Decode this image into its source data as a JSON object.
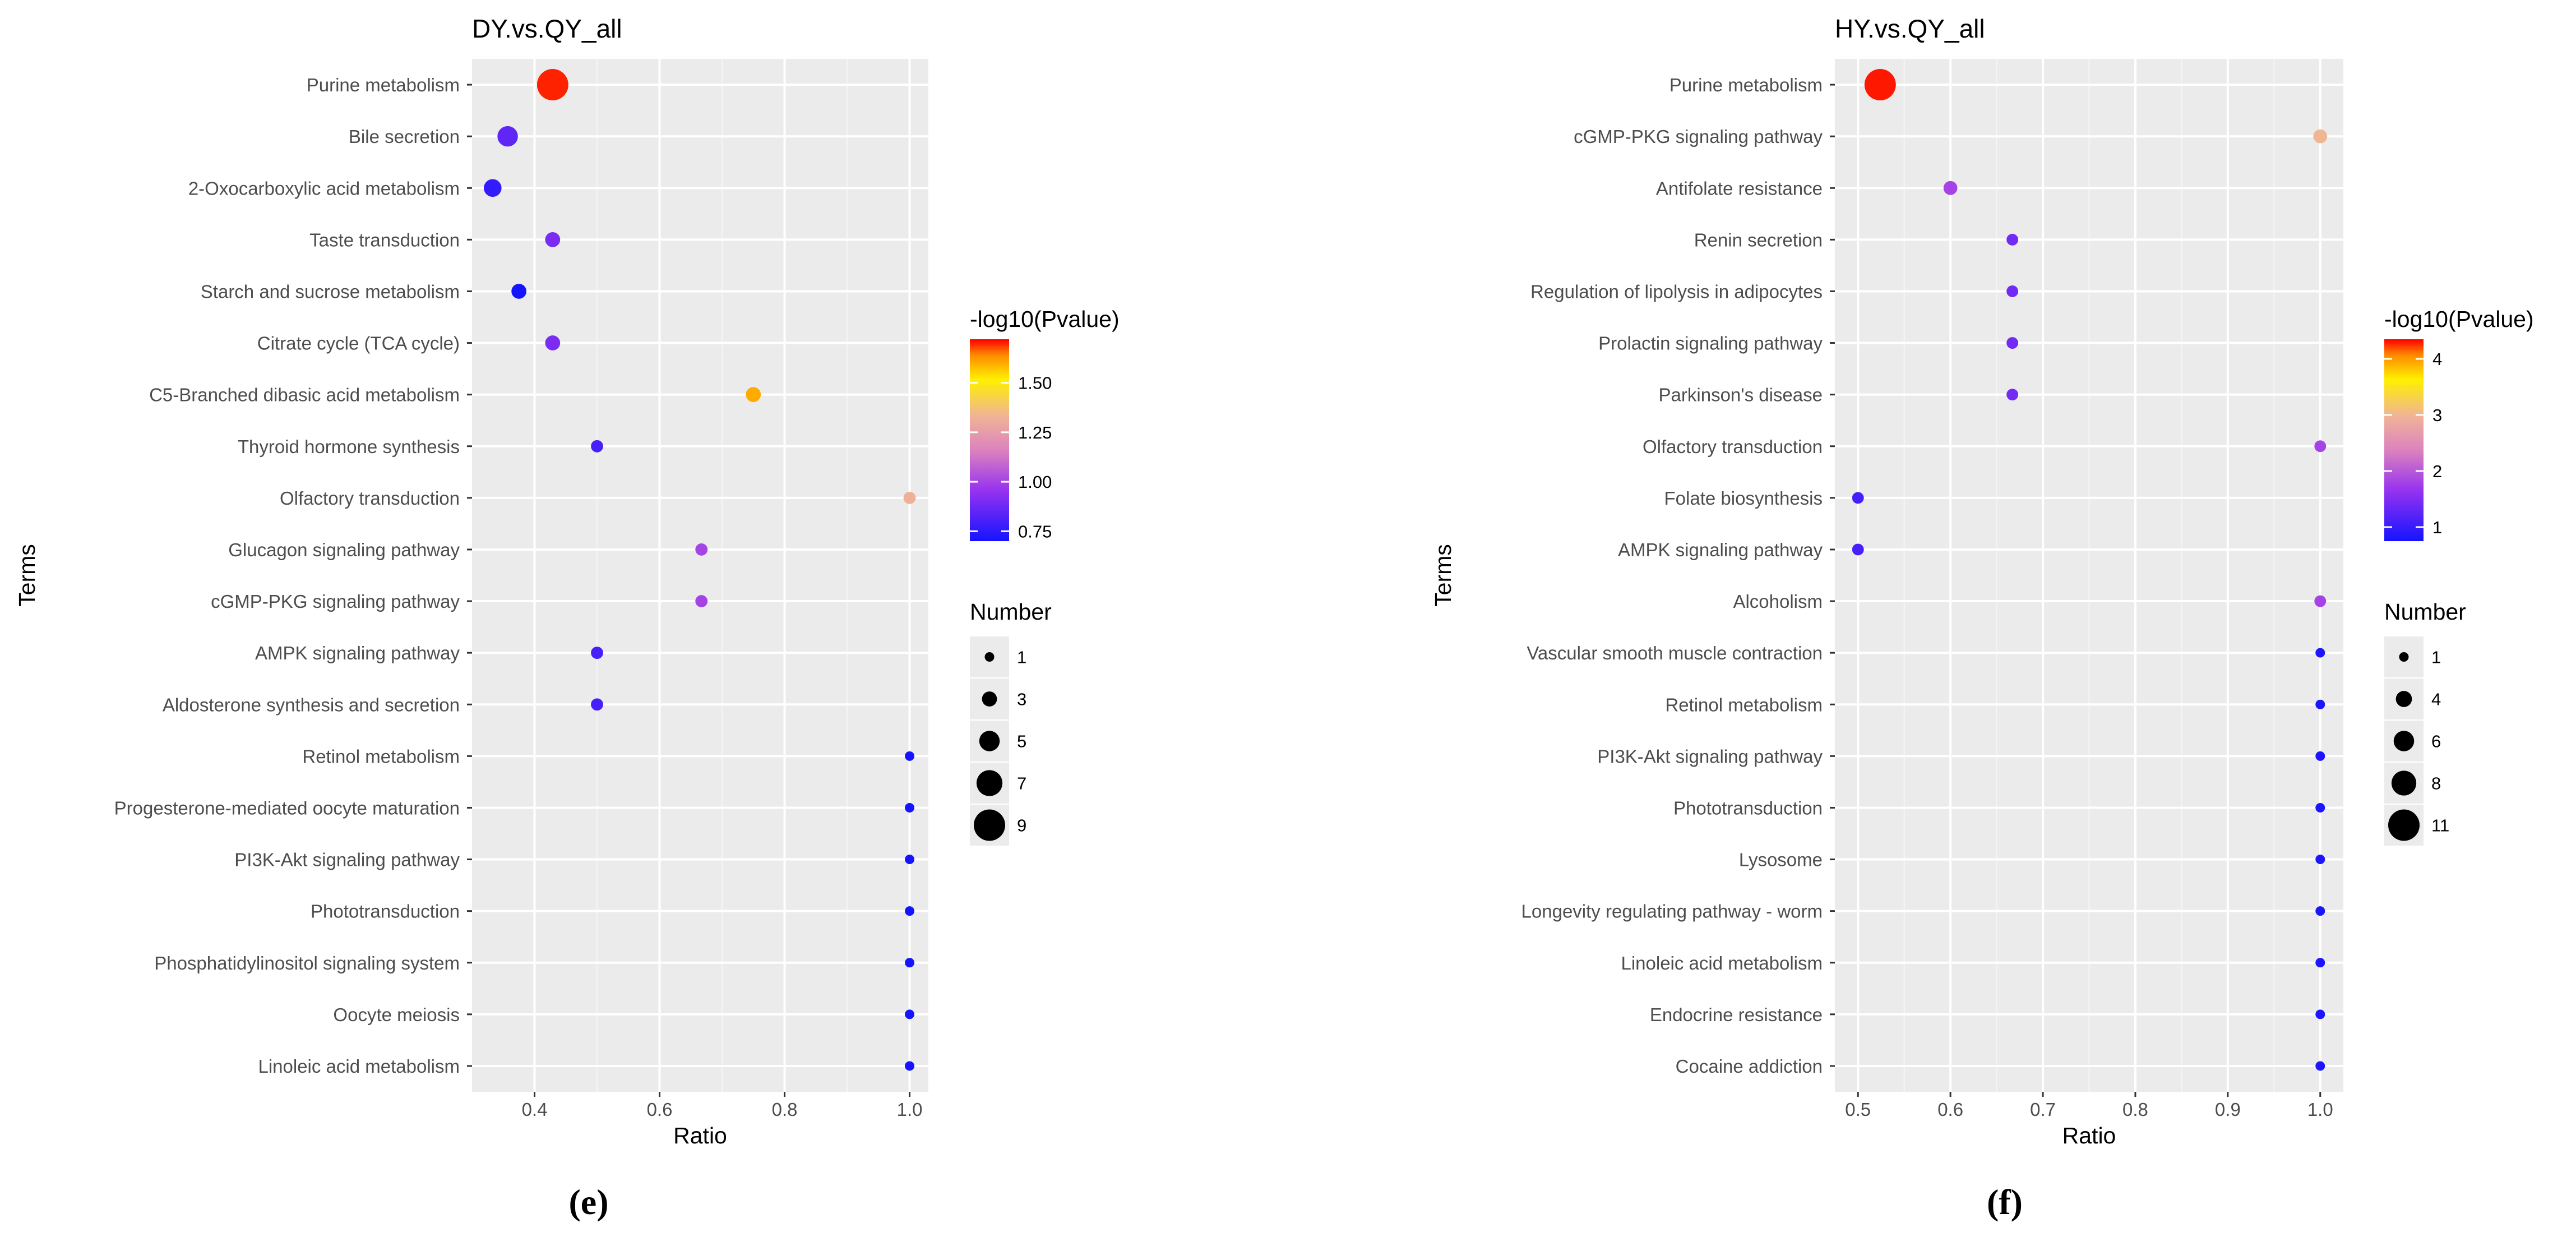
{
  "chart_data": [
    {
      "type": "scatter",
      "subtype": "bubble",
      "title": "DY.vs.QY_all",
      "xlabel": "Ratio",
      "ylabel": "Terms",
      "xlim": [
        0.3,
        1.03
      ],
      "xticks": [
        "0.4",
        "0.6",
        "0.8",
        "1.0"
      ],
      "grid": true,
      "caption": "(e)",
      "terms": [
        "Purine metabolism",
        "Bile secretion",
        "2-Oxocarboxylic acid metabolism",
        "Taste transduction",
        "Starch and sucrose metabolism",
        "Citrate cycle (TCA cycle)",
        "C5-Branched dibasic acid metabolism",
        "Thyroid hormone synthesis",
        "Olfactory transduction",
        "Glucagon signaling pathway",
        "cGMP-PKG signaling pathway",
        "AMPK signaling pathway",
        "Aldosterone synthesis and secretion",
        "Retinol metabolism",
        "Progesterone-mediated oocyte maturation",
        "PI3K-Akt signaling pathway",
        "Phototransduction",
        "Phosphatidylinositol signaling system",
        "Oocyte meiosis",
        "Linoleic acid metabolism"
      ],
      "ratio": [
        0.429,
        0.357,
        0.333,
        0.429,
        0.375,
        0.429,
        0.75,
        0.5,
        1.0,
        0.667,
        0.667,
        0.5,
        0.5,
        1.0,
        1.0,
        1.0,
        1.0,
        1.0,
        1.0,
        1.0
      ],
      "number": [
        9,
        5,
        4,
        3,
        3,
        3,
        3,
        2,
        2,
        2,
        2,
        2,
        2,
        1,
        1,
        1,
        1,
        1,
        1,
        1
      ],
      "neg_log10_pvalue": [
        1.7,
        0.85,
        0.76,
        0.9,
        0.7,
        0.9,
        1.6,
        0.8,
        1.32,
        1.0,
        1.0,
        0.8,
        0.8,
        0.7,
        0.7,
        0.7,
        0.7,
        0.7,
        0.7,
        0.7
      ],
      "color_legend": {
        "title": "-log10(Pvalue)",
        "ticks": [
          "0.75",
          "1.00",
          "1.25",
          "1.50"
        ],
        "range": [
          0.7,
          1.72
        ]
      },
      "size_legend": {
        "title": "Number",
        "labels": [
          "1",
          "3",
          "5",
          "7",
          "9"
        ],
        "range": [
          1,
          9
        ]
      }
    },
    {
      "type": "scatter",
      "subtype": "bubble",
      "title": "HY.vs.QY_all",
      "xlabel": "Ratio",
      "ylabel": "Terms",
      "xlim": [
        0.475,
        1.025
      ],
      "xticks": [
        "0.5",
        "0.6",
        "0.7",
        "0.8",
        "0.9",
        "1.0"
      ],
      "grid": true,
      "caption": "(f)",
      "terms": [
        "Purine metabolism",
        "cGMP-PKG signaling pathway",
        "Antifolate resistance",
        "Renin secretion",
        "Regulation of lipolysis in adipocytes",
        "Prolactin signaling pathway",
        "Parkinson's disease",
        "Olfactory transduction",
        "Folate biosynthesis",
        "AMPK signaling pathway",
        "Alcoholism",
        "Vascular smooth muscle contraction",
        "Retinol metabolism",
        "PI3K-Akt signaling pathway",
        "Phototransduction",
        "Lysosome",
        "Longevity regulating pathway - worm",
        "Linoleic acid metabolism",
        "Endocrine resistance",
        "Cocaine addiction"
      ],
      "ratio": [
        0.524,
        1.0,
        0.6,
        0.667,
        0.667,
        0.667,
        0.667,
        1.0,
        0.5,
        0.5,
        1.0,
        1.0,
        1.0,
        1.0,
        1.0,
        1.0,
        1.0,
        1.0,
        1.0,
        1.0
      ],
      "number": [
        11,
        3,
        3,
        2,
        2,
        2,
        2,
        2,
        2,
        2,
        2,
        1,
        1,
        1,
        1,
        1,
        1,
        1,
        1,
        1
      ],
      "neg_log10_pvalue": [
        4.3,
        3.0,
        1.8,
        1.4,
        1.4,
        1.4,
        1.4,
        1.8,
        1.1,
        1.1,
        1.8,
        0.8,
        0.8,
        0.8,
        0.8,
        0.8,
        0.8,
        0.8,
        0.8,
        0.8
      ],
      "color_legend": {
        "title": "-log10(Pvalue)",
        "ticks": [
          "1",
          "2",
          "3",
          "4"
        ],
        "range": [
          0.75,
          4.35
        ]
      },
      "size_legend": {
        "title": "Number",
        "labels": [
          "1",
          "4",
          "6",
          "8",
          "11"
        ],
        "range": [
          1,
          11
        ]
      }
    }
  ]
}
